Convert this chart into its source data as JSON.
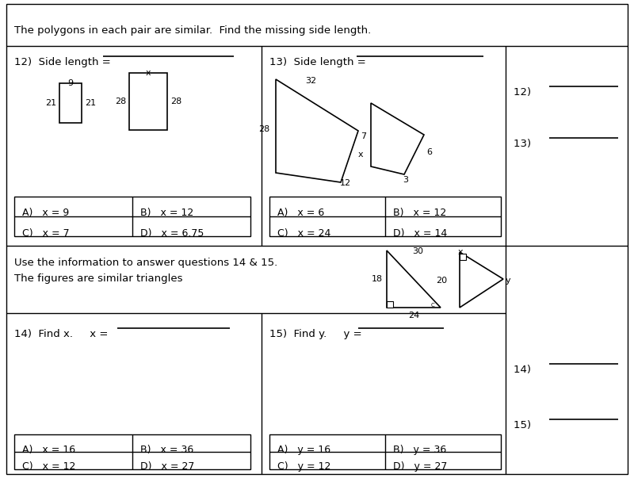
{
  "bg_color": "#ffffff",
  "title_text": "The polygons in each pair are similar.  Find the missing side length.",
  "q12_label": "12)  Side length = ",
  "q13_label": "13)  Side length = ",
  "q14_label": "14)  Find x.     x = ",
  "q15_label": "15)  Find y.     y = ",
  "q12_answer": "12)  ",
  "q13_answer": "13)  ",
  "q14_answer": "14)  ",
  "q15_answer": "15)  ",
  "info_text1": "Use the information to answer questions 14 & 15.",
  "info_text2": "The figures are similar triangles",
  "q12_choices": [
    [
      "A)   x = 9",
      "B)   x = 12"
    ],
    [
      "C)   x = 7",
      "D)   x = 6.75"
    ]
  ],
  "q13_choices": [
    [
      "A)   x = 6",
      "B)   x = 12"
    ],
    [
      "C)   x = 24",
      "D)   x = 14"
    ]
  ],
  "q14_choices": [
    [
      "A)   x = 16",
      "B)   x = 36"
    ],
    [
      "C)   x = 12",
      "D)   x = 27"
    ]
  ],
  "q15_choices": [
    [
      "A)   y = 16",
      "B)   y = 36"
    ],
    [
      "C)   y = 12",
      "D)   y = 27"
    ]
  ]
}
